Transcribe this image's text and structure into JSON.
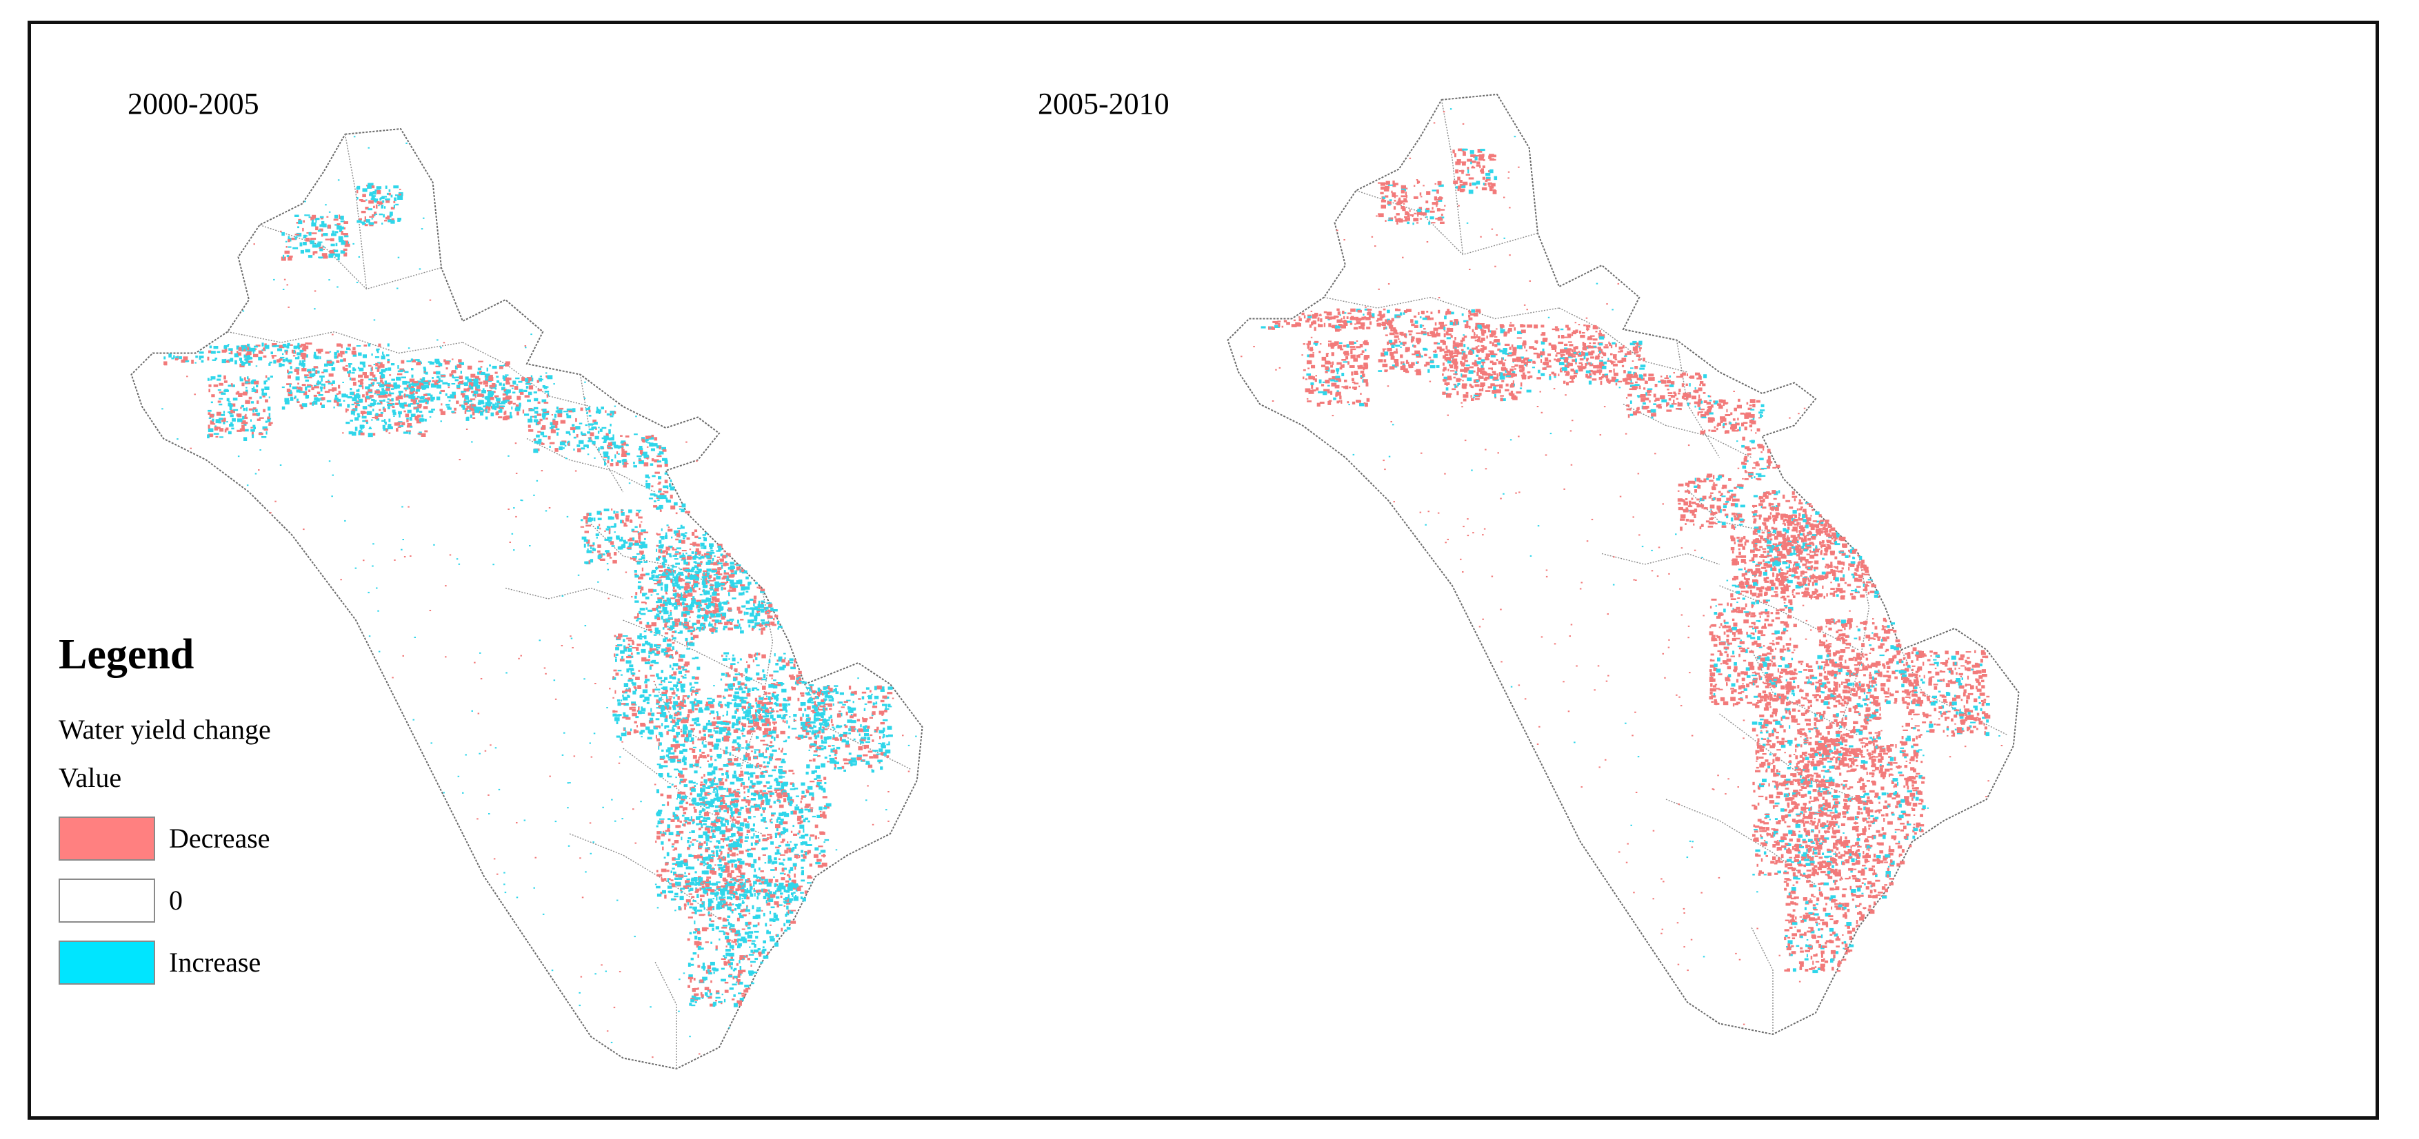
{
  "panels": [
    {
      "id": "left",
      "title": "2000-2005",
      "bias": 0.38
    },
    {
      "id": "right",
      "title": "2005-2010",
      "bias": 0.82
    }
  ],
  "legend": {
    "title": "Legend",
    "subtitle": "Water yield change",
    "field": "Value",
    "items": [
      {
        "label": "Decrease",
        "color": "#ff8080"
      },
      {
        "label": "0",
        "color": "#ffffff"
      },
      {
        "label": "Increase",
        "color": "#00e5ff"
      }
    ]
  },
  "colors": {
    "decrease": "#f27a7a",
    "increase": "#2fd6ea",
    "boundary": "#6a6a6a"
  }
}
